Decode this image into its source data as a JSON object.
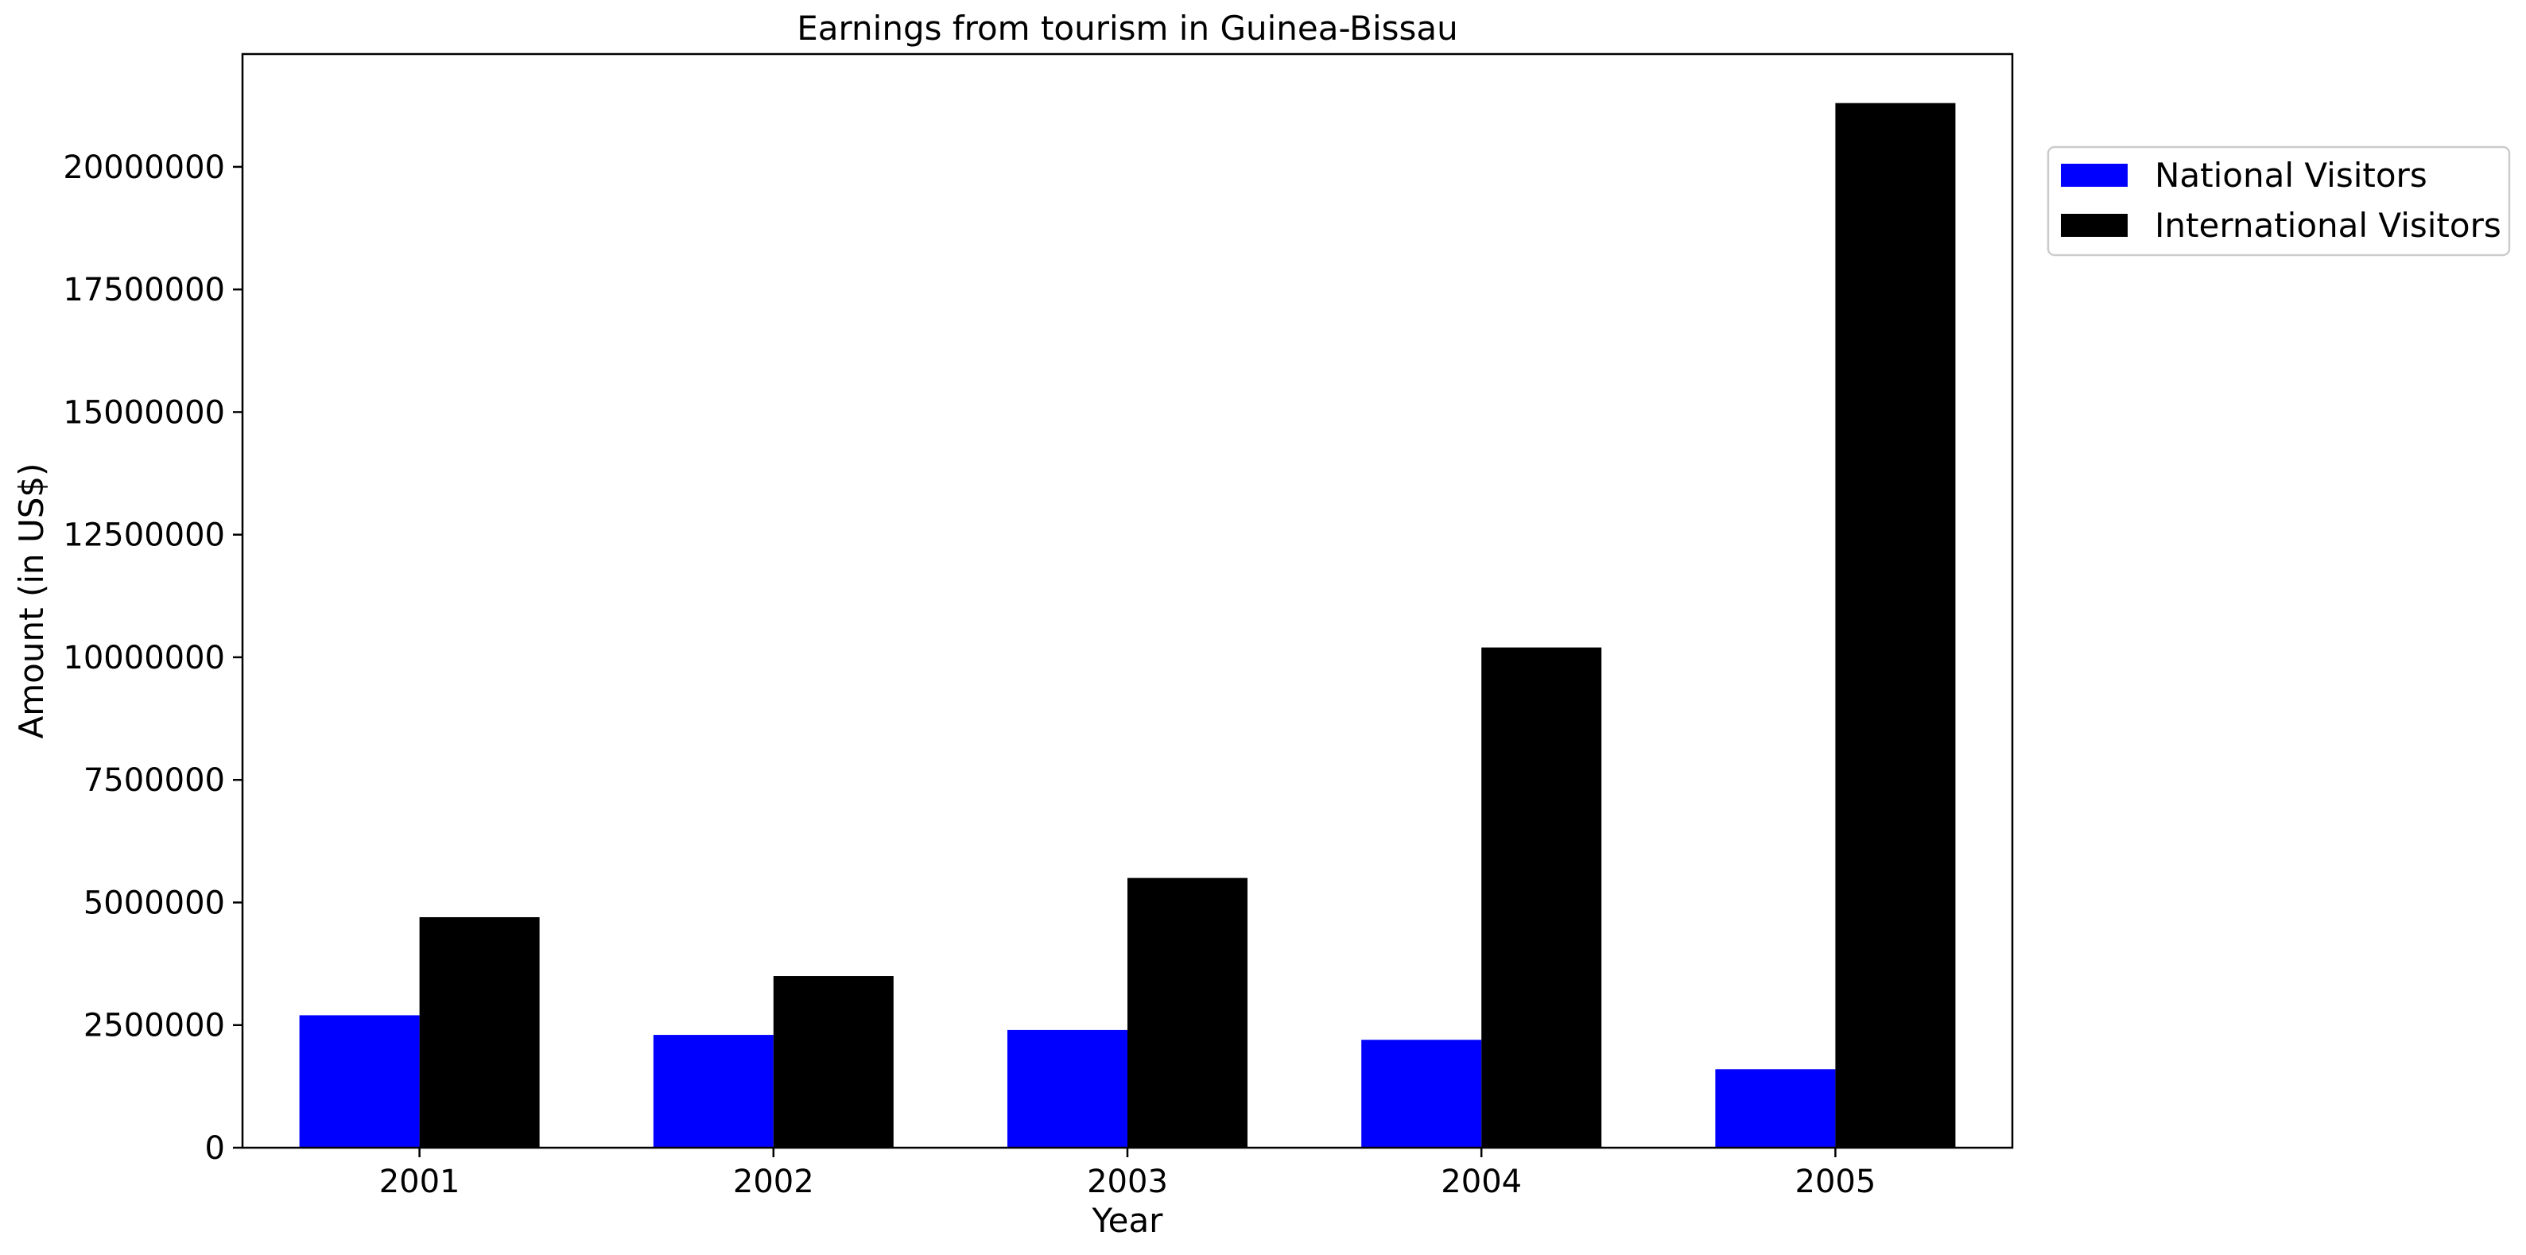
{
  "chart_data": {
    "type": "bar",
    "title": "Earnings from tourism in Guinea-Bissau",
    "xlabel": "Year",
    "ylabel": "Amount (in US$)",
    "categories": [
      "2001",
      "2002",
      "2003",
      "2004",
      "2005"
    ],
    "series": [
      {
        "name": "National Visitors",
        "color": "#0000ff",
        "values": [
          2700000,
          2300000,
          2400000,
          2200000,
          1600000
        ]
      },
      {
        "name": "International Visitors",
        "color": "#000000",
        "values": [
          4700000,
          3500000,
          5500000,
          10200000,
          21300000
        ]
      }
    ],
    "ylim": [
      0,
      22300000
    ],
    "yticks": [
      0,
      2500000,
      5000000,
      7500000,
      10000000,
      12500000,
      15000000,
      17500000,
      20000000
    ],
    "ytick_labels": [
      "0",
      "2500000",
      "5000000",
      "7500000",
      "10000000",
      "12500000",
      "15000000",
      "17500000",
      "20000000"
    ],
    "grid": false,
    "legend_position": "outside-top-right"
  }
}
